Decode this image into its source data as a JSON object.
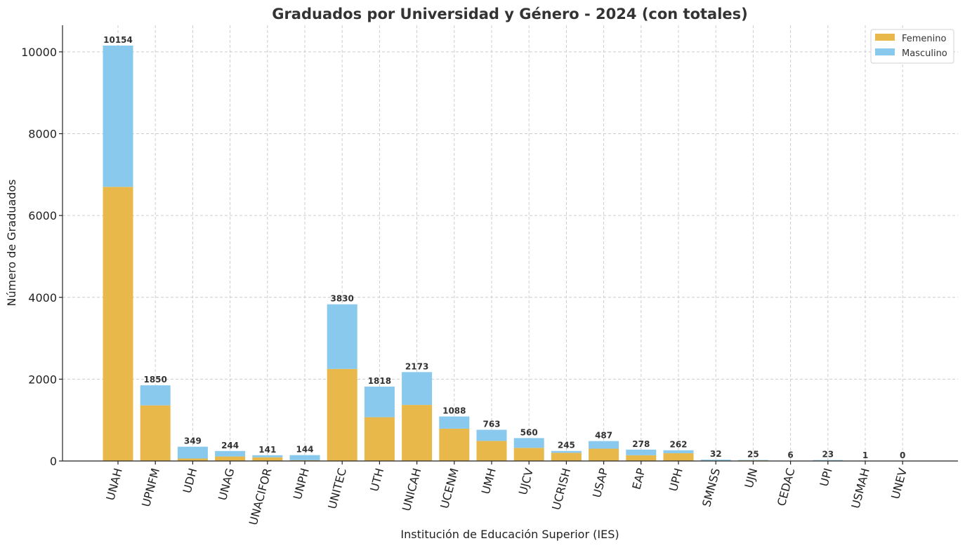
{
  "chart_data": {
    "type": "bar",
    "stacked": true,
    "title": "Graduados por Universidad y Género - 2024 (con totales)",
    "xlabel": "Institución de Educación Superior (IES)",
    "ylabel": "Número de Graduados",
    "ylim": [
      0,
      10650
    ],
    "yticks": [
      "0",
      "2000",
      "4000",
      "6000",
      "8000",
      "10000"
    ],
    "grid": true,
    "legend_position": "top-right",
    "categories": [
      "UNAH",
      "UPNFM",
      "UDH",
      "UNAG",
      "UNACIFOR",
      "UNPH",
      "UNITEC",
      "UTH",
      "UNICAH",
      "UCENM",
      "UMH",
      "UJCV",
      "UCRISH",
      "USAP",
      "EAP",
      "UPH",
      "SMNSS",
      "UJN",
      "CEDAC",
      "UPI",
      "USMAH",
      "UNEV"
    ],
    "series": [
      {
        "name": "Femenino",
        "color": "#e9b84a",
        "values": [
          6700,
          1360,
          60,
          110,
          90,
          20,
          2250,
          1070,
          1370,
          790,
          490,
          320,
          200,
          300,
          140,
          190,
          10,
          15,
          3,
          10,
          1,
          0
        ]
      },
      {
        "name": "Masculino",
        "color": "#89c9ed",
        "values": [
          3454,
          490,
          289,
          134,
          51,
          124,
          1580,
          748,
          803,
          298,
          273,
          240,
          45,
          187,
          138,
          72,
          22,
          10,
          3,
          13,
          0,
          0
        ]
      }
    ],
    "totals": [
      "10154",
      "1850",
      "349",
      "244",
      "141",
      "144",
      "3830",
      "1818",
      "2173",
      "1088",
      "763",
      "560",
      "245",
      "487",
      "278",
      "262",
      "32",
      "25",
      "6",
      "23",
      "1",
      "0"
    ]
  }
}
